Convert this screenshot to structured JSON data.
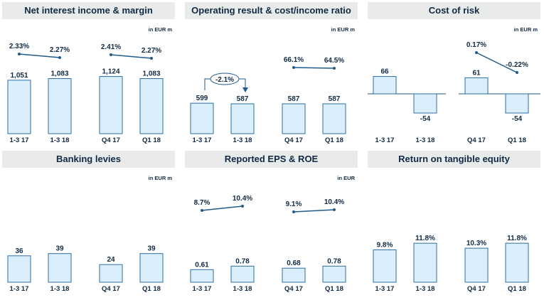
{
  "colors": {
    "bar_fill": "#daeefb",
    "bar_stroke": "#2e6fa6",
    "line": "#1f5a8a",
    "text": "#0f2a44",
    "title_bg": "#e9eaea"
  },
  "chart_data": [
    {
      "id": "nii",
      "type": "bar",
      "title": "Net interest income & margin",
      "unit": "in EUR m",
      "categories": [
        "1-3 17",
        "1-3 18",
        "Q4 17",
        "Q1 18"
      ],
      "values": [
        1051,
        1083,
        1124,
        1083
      ],
      "value_labels": [
        "1,051",
        "1,083",
        "1,124",
        "1,083"
      ],
      "line": {
        "name": "",
        "groups": [
          [
            0,
            1
          ],
          [
            2,
            3
          ]
        ],
        "labels": [
          "2.33%",
          "2.27%",
          "2.41%",
          "2.27%"
        ]
      },
      "ylim": [
        0,
        1300
      ]
    },
    {
      "id": "opres",
      "type": "bar",
      "title": "Operating result & cost/income ratio",
      "unit": "in EUR m",
      "categories": [
        "1-3 17",
        "1-3 18",
        "Q4 17",
        "Q1 18"
      ],
      "values": [
        599,
        587,
        587,
        587
      ],
      "value_labels": [
        "599",
        "587",
        "587",
        "587"
      ],
      "line": {
        "name": "",
        "groups": [
          [
            2,
            3
          ]
        ],
        "labels": [
          "",
          "",
          "66.1%",
          "64.5%"
        ]
      },
      "annotation": "-2.1%",
      "ylim": [
        0,
        1300
      ]
    },
    {
      "id": "risk",
      "type": "bar",
      "title": "Cost of risk",
      "unit": "in EUR m",
      "categories": [
        "1-3 17",
        "1-3 18",
        "Q4 17",
        "Q1 18"
      ],
      "values": [
        66,
        -54,
        61,
        -54
      ],
      "value_labels": [
        "66",
        "-54",
        "61",
        "-54"
      ],
      "line": {
        "name": "",
        "groups": [
          [
            2,
            3
          ]
        ],
        "labels": [
          "",
          "",
          "0.17%",
          "-0.22%"
        ]
      },
      "ylim": [
        -80,
        100
      ]
    },
    {
      "id": "levies",
      "type": "bar",
      "title": "Banking levies",
      "unit": "in EUR m",
      "categories": [
        "1-3 17",
        "1-3 18",
        "Q4 17",
        "Q1 18"
      ],
      "values": [
        36,
        39,
        24,
        39
      ],
      "value_labels": [
        "36",
        "39",
        "24",
        "39"
      ],
      "ylim": [
        0,
        90
      ]
    },
    {
      "id": "eps",
      "type": "bar",
      "title": "Reported EPS & ROE",
      "unit": "in EUR",
      "categories": [
        "1-3 17",
        "1-3 18",
        "Q4 17",
        "Q1 18"
      ],
      "values": [
        0.61,
        0.78,
        0.68,
        0.78
      ],
      "value_labels": [
        "0.61",
        "0.78",
        "0.68",
        "0.78"
      ],
      "line": {
        "name": "",
        "groups": [
          [
            0,
            1
          ],
          [
            2,
            3
          ]
        ],
        "labels": [
          "8.7%",
          "10.4%",
          "9.1%",
          "10.4%"
        ]
      },
      "ylim": [
        0,
        3.2
      ]
    },
    {
      "id": "rote",
      "type": "bar",
      "title": "Return on tangible equity",
      "unit": "",
      "categories": [
        "1-3 17",
        "1-3 18",
        "Q4 17",
        "Q1 18"
      ],
      "values": [
        9.8,
        11.8,
        10.3,
        11.8
      ],
      "value_labels": [
        "9.8%",
        "11.8%",
        "10.3%",
        "11.8%"
      ],
      "ylim": [
        0,
        20
      ]
    }
  ]
}
